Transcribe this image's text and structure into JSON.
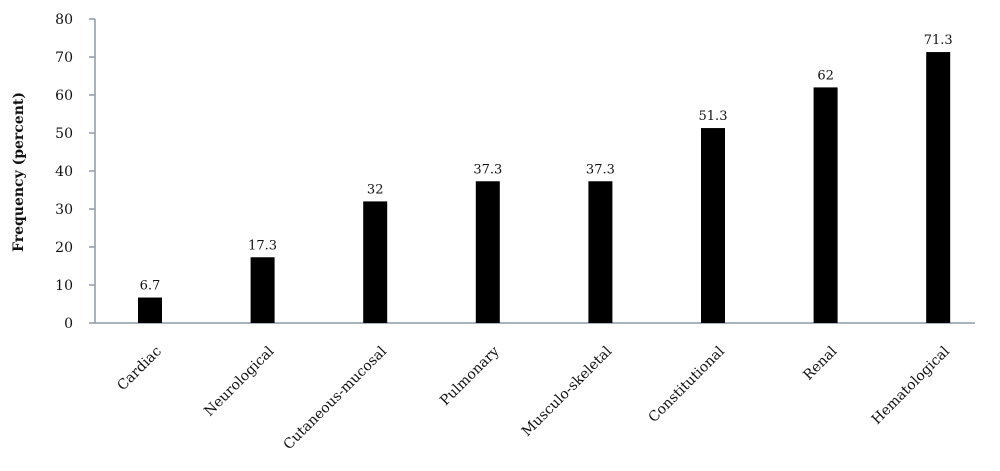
{
  "chart_data": {
    "type": "bar",
    "title": "",
    "xlabel": "",
    "ylabel": "Frequency (percent)",
    "categories": [
      "Cardiac",
      "Neurological",
      "Cutaneous-mucosal",
      "Pulmonary",
      "Musculo-skeletal",
      "Constitutional",
      "Renal",
      "Hematological"
    ],
    "values": [
      6.7,
      17.3,
      32,
      37.3,
      37.3,
      51.3,
      62,
      71.3
    ],
    "data_labels": [
      "6.7",
      "17.3",
      "32",
      "37.3",
      "37.3",
      "51.3",
      "62",
      "71.3"
    ],
    "y_ticks": [
      0,
      10,
      20,
      30,
      40,
      50,
      60,
      70,
      80
    ],
    "ylim": [
      0,
      80
    ],
    "grid": false,
    "legend": "none",
    "bar_color": "#000000",
    "axis_color": "#8c9aa8"
  }
}
